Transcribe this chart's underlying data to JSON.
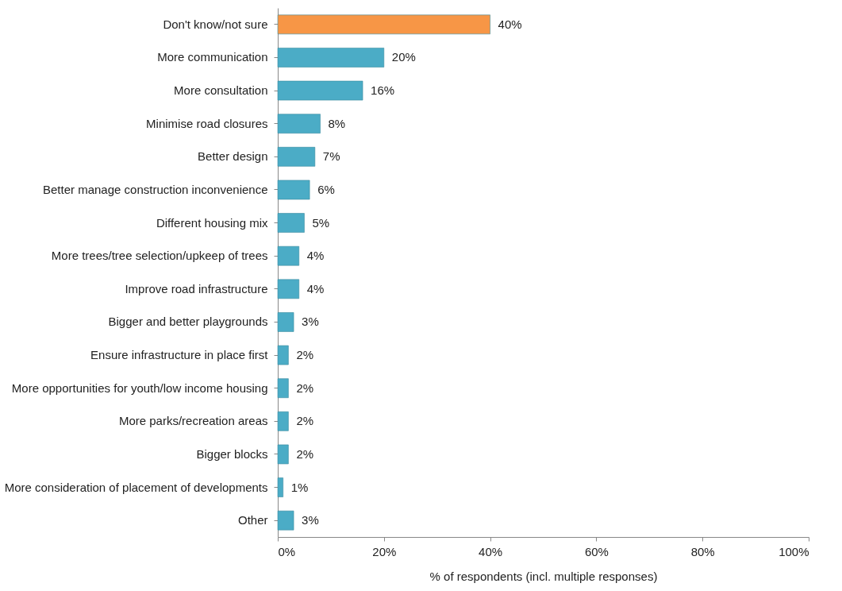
{
  "chart_data": {
    "type": "bar",
    "orientation": "horizontal",
    "xlabel": "% of respondents (incl. multiple responses)",
    "categories": [
      "Don't know/not sure",
      "More communication",
      "More consultation",
      "Minimise road closures",
      "Better design",
      "Better manage construction inconvenience",
      "Different housing mix",
      "More trees/tree selection/upkeep of trees",
      "Improve road infrastructure",
      "Bigger and better playgrounds",
      "Ensure infrastructure in place first",
      "More opportunities for youth/low income housing",
      "More parks/recreation areas",
      "Bigger blocks",
      "More consideration of placement of developments",
      "Other"
    ],
    "values": [
      40,
      20,
      16,
      8,
      7,
      6,
      5,
      4,
      4,
      3,
      2,
      2,
      2,
      2,
      1,
      3
    ],
    "value_labels": [
      "40%",
      "20%",
      "16%",
      "8%",
      "7%",
      "6%",
      "5%",
      "4%",
      "4%",
      "3%",
      "2%",
      "2%",
      "2%",
      "2%",
      "1%",
      "3%"
    ],
    "colors": [
      "#f79646",
      "#4bacc6",
      "#4bacc6",
      "#4bacc6",
      "#4bacc6",
      "#4bacc6",
      "#4bacc6",
      "#4bacc6",
      "#4bacc6",
      "#4bacc6",
      "#4bacc6",
      "#4bacc6",
      "#4bacc6",
      "#4bacc6",
      "#4bacc6",
      "#4bacc6"
    ],
    "xlim": [
      0,
      100
    ],
    "xticks": [
      {
        "value": 0,
        "label": "0%"
      },
      {
        "value": 20,
        "label": "20%"
      },
      {
        "value": 40,
        "label": "40%"
      },
      {
        "value": 60,
        "label": "60%"
      },
      {
        "value": 80,
        "label": "80%"
      },
      {
        "value": 100,
        "label": "100%"
      }
    ],
    "grid": false
  }
}
